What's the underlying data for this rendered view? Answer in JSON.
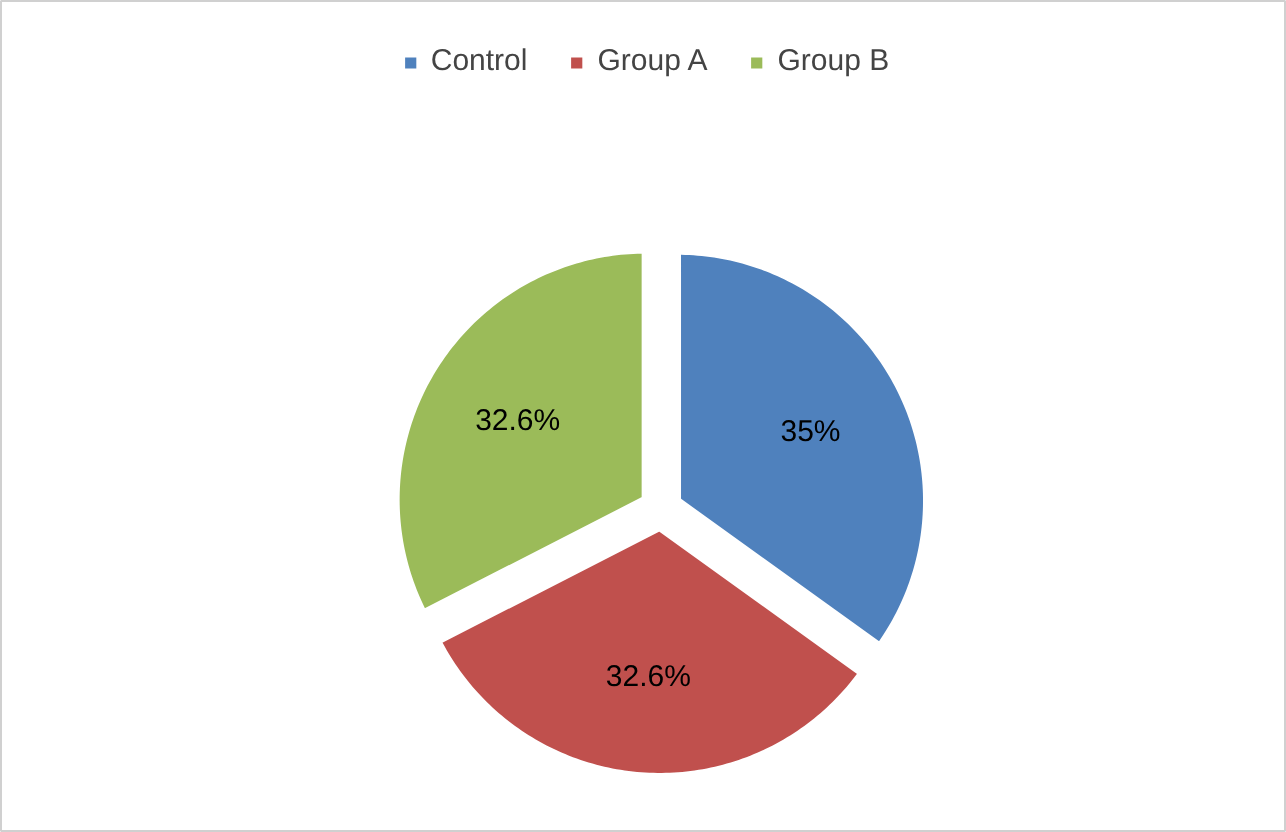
{
  "chart_data": {
    "type": "pie",
    "categories": [
      "Control",
      "Group A",
      "Group B"
    ],
    "values": [
      35,
      32.6,
      32.6
    ],
    "colors": [
      "#4f81bd",
      "#c0504d",
      "#9bbb59"
    ],
    "value_labels": [
      "35%",
      "32.6%",
      "32.6%"
    ],
    "legend": "top"
  }
}
